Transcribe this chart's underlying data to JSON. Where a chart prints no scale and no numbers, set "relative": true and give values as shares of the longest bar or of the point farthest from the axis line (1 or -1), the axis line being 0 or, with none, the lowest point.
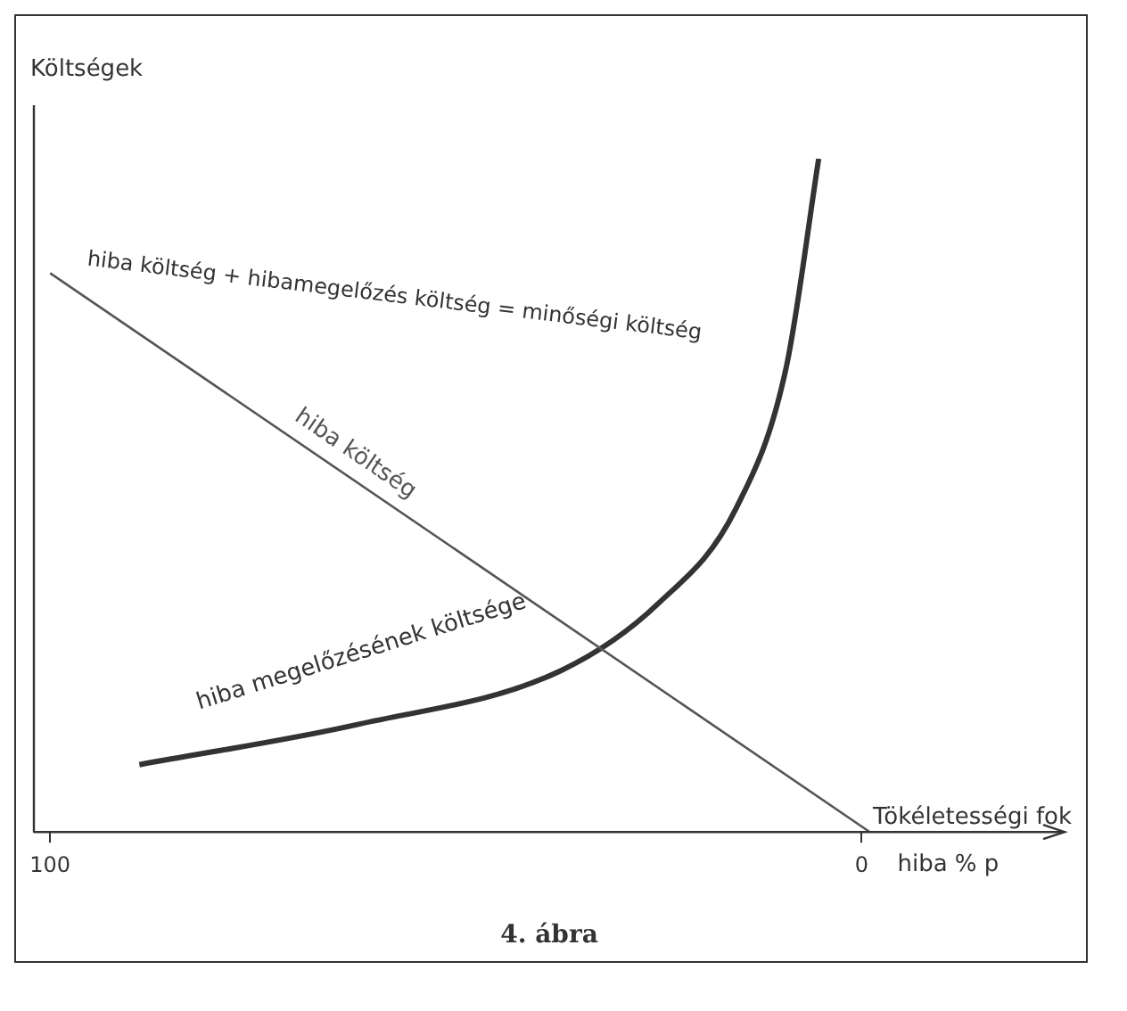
{
  "chart_data": {
    "type": "line",
    "relative": true,
    "ylabel": "Költségek",
    "xlabel": "hiba % p",
    "xlim": [
      102,
      -25
    ],
    "xticks": [
      100,
      0
    ],
    "grid": false,
    "legend": false,
    "marker": "none",
    "series": [
      {
        "name": "hiba költség",
        "color": "#555555",
        "x": [
          100,
          -1
        ],
        "values": [
          0.83,
          0
        ]
      },
      {
        "name": "hiba megelőzésének költsége",
        "color": "#333333",
        "x": [
          89,
          62,
          37,
          25,
          15.5,
          9.3,
          5.3
        ],
        "values": [
          0.1,
          0.16,
          0.24,
          0.34,
          0.48,
          0.69,
          1
        ]
      }
    ],
    "annotations": [
      "hiba költség + hibamegelőzés költség = minőségi költség",
      "Tökéletességi fok",
      "4. ábra"
    ]
  }
}
